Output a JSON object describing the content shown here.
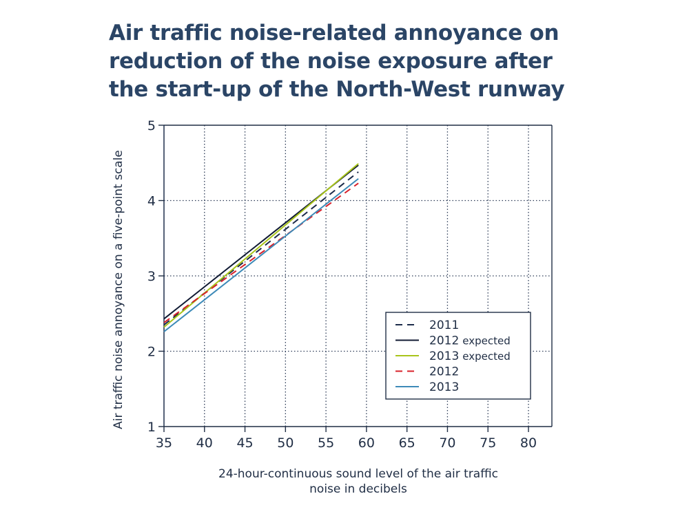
{
  "chart_data": {
    "type": "line",
    "title": [
      "Air traffic noise-related annoyance on",
      "reduction of the noise exposure after",
      "the start-up of the North-West runway"
    ],
    "xlabel": [
      "24-hour-continuous sound level of the air traffic",
      "noise in decibels"
    ],
    "ylabel": "Air traffic noise annoyance on a five-point scale",
    "xlim": [
      35,
      83
    ],
    "ylim": [
      1,
      5
    ],
    "xticks": [
      35,
      40,
      45,
      50,
      55,
      60,
      65,
      70,
      75,
      80
    ],
    "yticks": [
      1,
      2,
      3,
      4,
      5
    ],
    "grid": true,
    "legend_position": "bottom-right",
    "series": [
      {
        "name": "2011",
        "label_main": "2011",
        "label_suffix": "",
        "color": "#1c2b4a",
        "style": "dashed",
        "x": [
          35,
          59
        ],
        "y": [
          2.35,
          4.38
        ]
      },
      {
        "name": "2012 expected",
        "label_main": "2012",
        "label_suffix": "expected",
        "color": "#101a33",
        "style": "solid",
        "x": [
          35,
          59
        ],
        "y": [
          2.43,
          4.47
        ]
      },
      {
        "name": "2013 expected",
        "label_main": "2013",
        "label_suffix": "expected",
        "color": "#a8c41a",
        "style": "solid",
        "x": [
          35,
          59
        ],
        "y": [
          2.32,
          4.49
        ]
      },
      {
        "name": "2012",
        "label_main": "2012",
        "label_suffix": "",
        "color": "#d8202a",
        "style": "dashed",
        "x": [
          35,
          59
        ],
        "y": [
          2.38,
          4.23
        ]
      },
      {
        "name": "2013",
        "label_main": "2013",
        "label_suffix": "",
        "color": "#3d8ab8",
        "style": "solid",
        "x": [
          35,
          59
        ],
        "y": [
          2.26,
          4.29
        ]
      }
    ]
  }
}
